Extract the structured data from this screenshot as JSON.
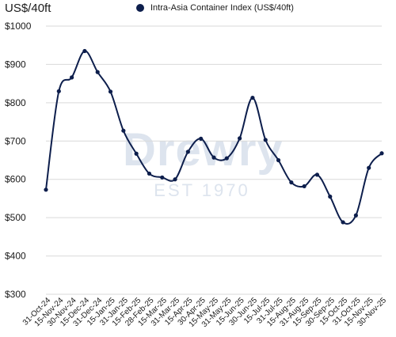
{
  "unit_label": "US$/40ft",
  "watermark": {
    "name": "Drewry",
    "est": "EST 1970"
  },
  "chart_data": {
    "type": "line",
    "title": "",
    "xlabel": "",
    "ylabel": "US$/40ft",
    "ylim": [
      300,
      1000
    ],
    "yticks": [
      300,
      400,
      500,
      600,
      700,
      800,
      900,
      1000
    ],
    "ytick_labels": [
      "$300",
      "$400",
      "$500",
      "$600",
      "$700",
      "$800",
      "$900",
      "$1000"
    ],
    "grid": "horizontal",
    "legend_position": "top",
    "line_color": "#0d1e4c",
    "grid_color": "#d9d9d9",
    "categories": [
      "31-Oct-24",
      "15-Nov-24",
      "30-Nov-24",
      "15-Dec-24",
      "31-Dec-24",
      "15-Jan-25",
      "31-Jan-25",
      "15-Feb-25",
      "28-Feb-25",
      "15-Mar-25",
      "31-Mar-25",
      "15-Apr-25",
      "30-Apr-25",
      "15-May-25",
      "31-May-25",
      "15-Jun-25",
      "30-Jun-25",
      "15-Jul-25",
      "31-Jul-25",
      "15-Aug-25",
      "31-Aug-25",
      "15-Sep-25",
      "30-Sep-25",
      "15-Oct-25",
      "31-Oct-25",
      "15-Nov-25",
      "30-Nov-25"
    ],
    "series": [
      {
        "name": "Intra-Asia Container Index (US$/40ft)",
        "values": [
          573,
          830,
          866,
          935,
          880,
          829,
          727,
          667,
          615,
          605,
          600,
          672,
          706,
          657,
          655,
          707,
          813,
          703,
          650,
          592,
          582,
          612,
          555,
          488,
          506,
          630,
          668
        ]
      }
    ]
  }
}
